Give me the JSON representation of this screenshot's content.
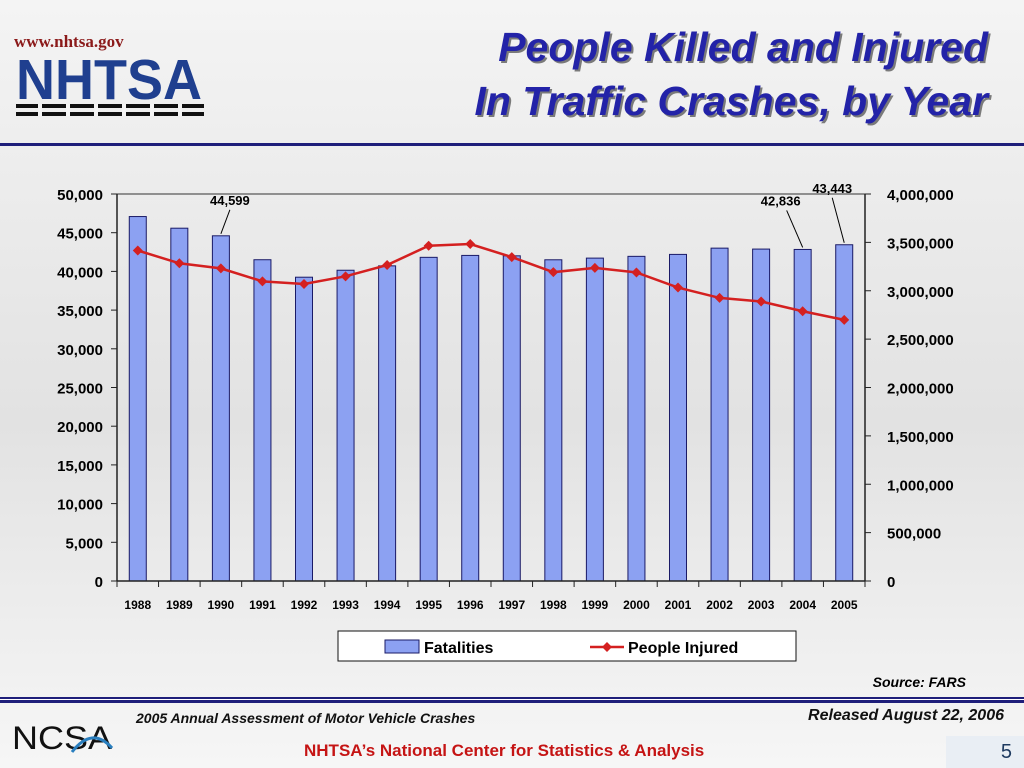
{
  "header": {
    "url": "www.nhtsa.gov",
    "logo_text": "NHTSA",
    "title_line1": "People Killed and Injured",
    "title_line2": "In Traffic Crashes, by Year"
  },
  "footer": {
    "source": "Source:  FARS",
    "report": "2005 Annual Assessment of Motor Vehicle Crashes",
    "released": "Released August 22, 2006",
    "center": "NHTSA’s National Center for Statistics & Analysis",
    "logo_text": "NCSA",
    "page_number": "5"
  },
  "colors": {
    "bar_fill": "#8ca1f2",
    "bar_stroke": "#1a1a66",
    "line": "#d42020",
    "title": "#2323a8",
    "footer_center": "#c51414"
  },
  "chart_data": {
    "type": "bar",
    "categories": [
      "1988",
      "1989",
      "1990",
      "1991",
      "1992",
      "1993",
      "1994",
      "1995",
      "1996",
      "1997",
      "1998",
      "1999",
      "2000",
      "2001",
      "2002",
      "2003",
      "2004",
      "2005"
    ],
    "series": [
      {
        "name": "Fatalities",
        "type": "bar",
        "axis": "left",
        "values": [
          47087,
          45582,
          44599,
          41508,
          39250,
          40150,
          40716,
          41817,
          42065,
          42013,
          41501,
          41717,
          41945,
          42196,
          43005,
          42884,
          42836,
          43443
        ]
      },
      {
        "name": "People Injured",
        "type": "line",
        "axis": "right",
        "values": [
          3416000,
          3284000,
          3231000,
          3097000,
          3070000,
          3149000,
          3266000,
          3465000,
          3483000,
          3348000,
          3192000,
          3236000,
          3189000,
          3033000,
          2926000,
          2889000,
          2788000,
          2699000
        ]
      }
    ],
    "left_axis": {
      "ylim": [
        0,
        50000
      ],
      "ticks": [
        "0",
        "5,000",
        "10,000",
        "15,000",
        "20,000",
        "25,000",
        "30,000",
        "35,000",
        "40,000",
        "45,000",
        "50,000"
      ]
    },
    "right_axis": {
      "ylim": [
        0,
        4000000
      ],
      "ticks": [
        "0",
        "500,000",
        "1,000,000",
        "1,500,000",
        "2,000,000",
        "2,500,000",
        "3,000,000",
        "3,500,000",
        "4,000,000"
      ]
    },
    "annotations": [
      {
        "text": "44,599",
        "category": "1990"
      },
      {
        "text": "42,836",
        "category": "2004"
      },
      {
        "text": "43,443",
        "category": "2005"
      }
    ],
    "legend": {
      "placement": "bottom-center",
      "entries": [
        "Fatalities",
        "People Injured"
      ]
    },
    "grid": false
  }
}
